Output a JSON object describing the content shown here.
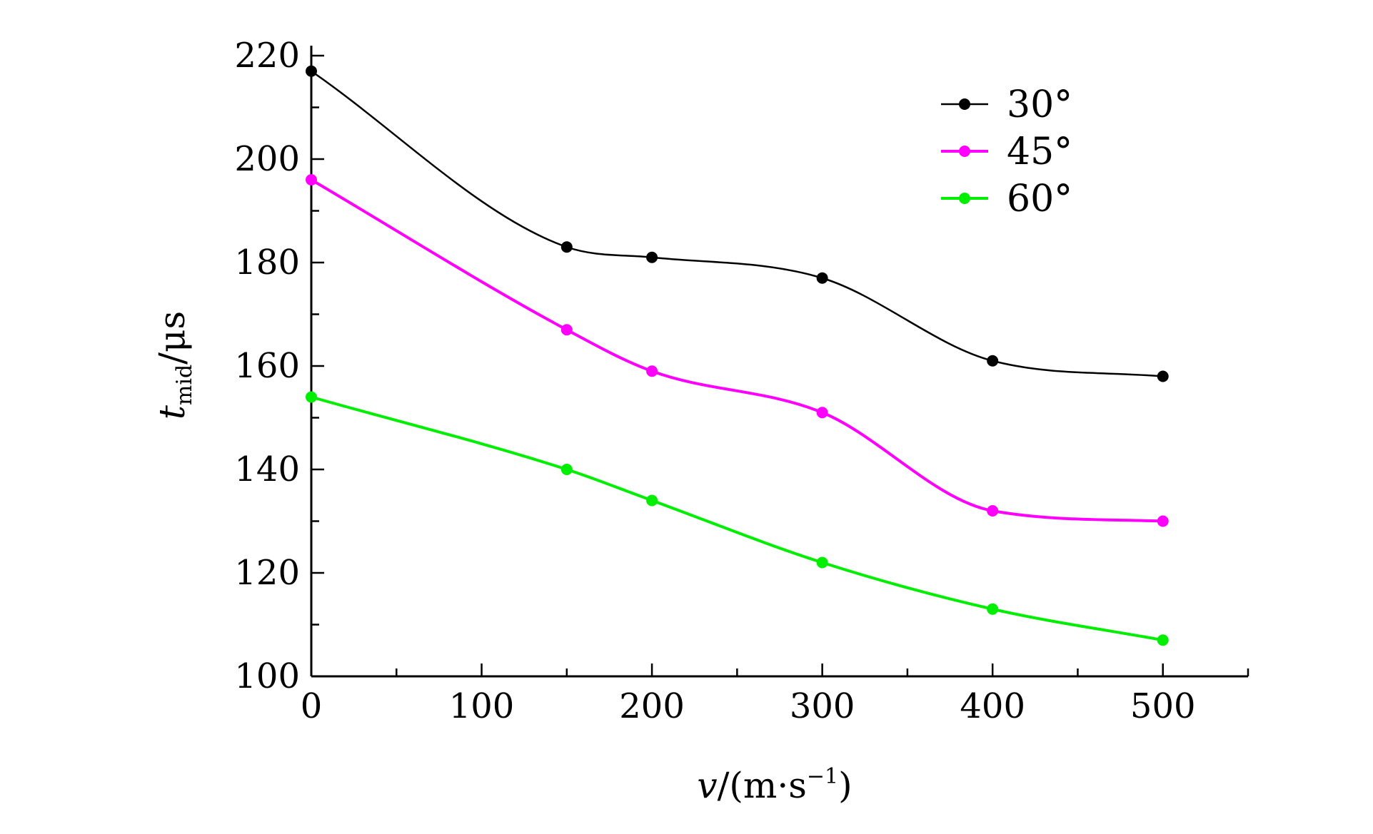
{
  "chart_data": {
    "type": "line",
    "title": "",
    "xlabel": {
      "var": "v",
      "unit_open": "/(m",
      "unit_dot": "·",
      "unit_s": "s",
      "unit_exp": "−1",
      "unit_close": ")"
    },
    "ylabel": {
      "var": "t",
      "sub": "mid",
      "unit": "/μs"
    },
    "xlim": [
      0,
      550
    ],
    "ylim": [
      100,
      220
    ],
    "x_ticks": [
      0,
      100,
      200,
      300,
      400,
      500
    ],
    "y_ticks": [
      100,
      120,
      140,
      160,
      180,
      200,
      220
    ],
    "legend_position": "top-right",
    "grid": false,
    "x": [
      0,
      150,
      200,
      300,
      400,
      500
    ],
    "series": [
      {
        "name": "30°",
        "color": "#000000",
        "values": [
          217,
          183,
          181,
          177,
          161,
          158
        ]
      },
      {
        "name": "45°",
        "color": "#ff00ff",
        "values": [
          196,
          167,
          159,
          151,
          132,
          130
        ]
      },
      {
        "name": "60°",
        "color": "#00ee00",
        "values": [
          154,
          140,
          134,
          122,
          113,
          107
        ]
      }
    ]
  }
}
